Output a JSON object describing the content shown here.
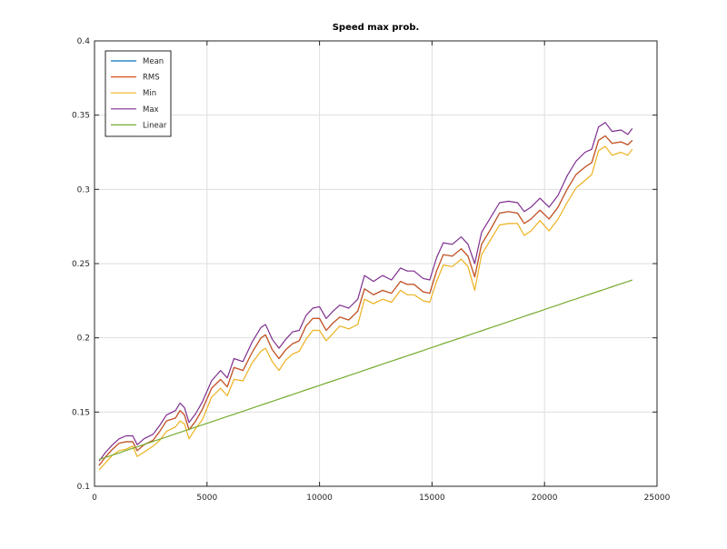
{
  "chart_data": {
    "type": "line",
    "title": "Speed max prob.",
    "xlabel": "",
    "ylabel": "",
    "xlim": [
      0,
      25000
    ],
    "ylim": [
      0.1,
      0.4
    ],
    "xticks": [
      0,
      5000,
      10000,
      15000,
      20000,
      25000
    ],
    "xtick_labels": [
      "0",
      "5000",
      "10000",
      "15000",
      "20000",
      "25000"
    ],
    "yticks": [
      0.1,
      0.15,
      0.2,
      0.25,
      0.3,
      0.35,
      0.4
    ],
    "ytick_labels": [
      "0.1",
      "0.15",
      "0.2",
      "0.25",
      "0.3",
      "0.35",
      "0.4"
    ],
    "grid": true,
    "legend_position": "top-left",
    "x": [
      200,
      500,
      800,
      1100,
      1400,
      1700,
      1900,
      2200,
      2600,
      2900,
      3200,
      3600,
      3800,
      4000,
      4200,
      4500,
      4800,
      5200,
      5600,
      5900,
      6200,
      6600,
      7000,
      7400,
      7600,
      7900,
      8200,
      8500,
      8800,
      9100,
      9400,
      9700,
      10000,
      10300,
      10600,
      10900,
      11300,
      11700,
      12000,
      12400,
      12800,
      13200,
      13600,
      13900,
      14200,
      14600,
      14900,
      15200,
      15500,
      15900,
      16300,
      16600,
      16900,
      17200,
      17600,
      18000,
      18400,
      18800,
      19100,
      19400,
      19800,
      20200,
      20600,
      21000,
      21400,
      21800,
      22100,
      22400,
      22700,
      23000,
      23400,
      23700,
      23900
    ],
    "series": [
      {
        "name": "Mean",
        "color": "#0072bd",
        "values": [
          0.114,
          0.12,
          0.125,
          0.129,
          0.13,
          0.13,
          0.124,
          0.128,
          0.131,
          0.137,
          0.144,
          0.146,
          0.151,
          0.148,
          0.138,
          0.144,
          0.152,
          0.166,
          0.172,
          0.167,
          0.18,
          0.178,
          0.19,
          0.2,
          0.202,
          0.192,
          0.186,
          0.192,
          0.196,
          0.198,
          0.208,
          0.213,
          0.213,
          0.205,
          0.21,
          0.214,
          0.212,
          0.218,
          0.233,
          0.229,
          0.232,
          0.23,
          0.238,
          0.236,
          0.236,
          0.231,
          0.23,
          0.245,
          0.256,
          0.255,
          0.26,
          0.255,
          0.241,
          0.263,
          0.273,
          0.284,
          0.285,
          0.284,
          0.277,
          0.28,
          0.286,
          0.28,
          0.288,
          0.3,
          0.31,
          0.315,
          0.318,
          0.333,
          0.336,
          0.331,
          0.332,
          0.33,
          0.333
        ]
      },
      {
        "name": "RMS",
        "color": "#d95319",
        "values": [
          0.114,
          0.12,
          0.125,
          0.129,
          0.13,
          0.13,
          0.124,
          0.128,
          0.131,
          0.137,
          0.144,
          0.146,
          0.151,
          0.148,
          0.138,
          0.144,
          0.152,
          0.166,
          0.172,
          0.167,
          0.18,
          0.178,
          0.19,
          0.2,
          0.202,
          0.192,
          0.186,
          0.192,
          0.196,
          0.198,
          0.208,
          0.213,
          0.213,
          0.205,
          0.21,
          0.214,
          0.212,
          0.218,
          0.233,
          0.229,
          0.232,
          0.23,
          0.238,
          0.236,
          0.236,
          0.231,
          0.23,
          0.245,
          0.256,
          0.255,
          0.26,
          0.255,
          0.241,
          0.263,
          0.273,
          0.284,
          0.285,
          0.284,
          0.277,
          0.28,
          0.286,
          0.28,
          0.288,
          0.3,
          0.31,
          0.315,
          0.318,
          0.333,
          0.336,
          0.331,
          0.332,
          0.33,
          0.333
        ]
      },
      {
        "name": "Min",
        "color": "#edb120",
        "values": [
          0.111,
          0.116,
          0.121,
          0.124,
          0.125,
          0.127,
          0.12,
          0.123,
          0.127,
          0.131,
          0.137,
          0.14,
          0.144,
          0.142,
          0.132,
          0.139,
          0.145,
          0.16,
          0.166,
          0.161,
          0.172,
          0.171,
          0.183,
          0.191,
          0.193,
          0.184,
          0.178,
          0.185,
          0.189,
          0.191,
          0.199,
          0.205,
          0.205,
          0.198,
          0.203,
          0.208,
          0.206,
          0.209,
          0.226,
          0.223,
          0.226,
          0.224,
          0.232,
          0.229,
          0.229,
          0.225,
          0.224,
          0.238,
          0.249,
          0.248,
          0.253,
          0.248,
          0.232,
          0.256,
          0.266,
          0.276,
          0.277,
          0.277,
          0.269,
          0.272,
          0.279,
          0.272,
          0.28,
          0.291,
          0.301,
          0.306,
          0.31,
          0.326,
          0.329,
          0.323,
          0.325,
          0.323,
          0.327
        ]
      },
      {
        "name": "Max",
        "color": "#7e2f8e",
        "values": [
          0.117,
          0.123,
          0.128,
          0.132,
          0.134,
          0.134,
          0.128,
          0.132,
          0.135,
          0.141,
          0.148,
          0.151,
          0.156,
          0.153,
          0.143,
          0.149,
          0.157,
          0.171,
          0.178,
          0.173,
          0.186,
          0.184,
          0.197,
          0.207,
          0.209,
          0.199,
          0.193,
          0.199,
          0.204,
          0.205,
          0.215,
          0.22,
          0.221,
          0.213,
          0.218,
          0.222,
          0.22,
          0.226,
          0.242,
          0.238,
          0.242,
          0.239,
          0.247,
          0.245,
          0.245,
          0.24,
          0.239,
          0.254,
          0.264,
          0.263,
          0.268,
          0.263,
          0.25,
          0.271,
          0.281,
          0.291,
          0.292,
          0.291,
          0.285,
          0.288,
          0.294,
          0.288,
          0.296,
          0.309,
          0.319,
          0.325,
          0.327,
          0.342,
          0.345,
          0.339,
          0.34,
          0.337,
          0.341
        ]
      },
      {
        "name": "Linear",
        "color": "#77ac30",
        "values": [
          0.118,
          0.1195,
          0.121,
          0.1225,
          0.1241,
          0.1256,
          0.1266,
          0.1281,
          0.1302,
          0.1317,
          0.1332,
          0.1353,
          0.1363,
          0.1373,
          0.1383,
          0.1399,
          0.1414,
          0.1434,
          0.1455,
          0.147,
          0.1485,
          0.1506,
          0.1526,
          0.1547,
          0.1557,
          0.1572,
          0.1587,
          0.1603,
          0.1618,
          0.1633,
          0.1649,
          0.1664,
          0.1679,
          0.1695,
          0.171,
          0.1725,
          0.1746,
          0.1766,
          0.1782,
          0.1802,
          0.1823,
          0.1843,
          0.1863,
          0.1879,
          0.1894,
          0.1914,
          0.193,
          0.1945,
          0.1961,
          0.1981,
          0.2001,
          0.2017,
          0.2032,
          0.2047,
          0.2068,
          0.2088,
          0.2109,
          0.2129,
          0.2144,
          0.216,
          0.218,
          0.2201,
          0.2221,
          0.2242,
          0.2262,
          0.2283,
          0.2298,
          0.2313,
          0.2328,
          0.2344,
          0.2364,
          0.2379,
          0.239
        ]
      }
    ]
  }
}
